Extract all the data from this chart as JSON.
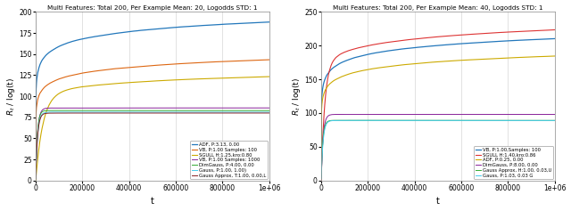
{
  "left_title": "Multi Features: Total 200, Per Example Mean: 20, Logodds STD: 1",
  "right_title": "Multi Features: Total 200, Per Example Mean: 40, Logodds STD: 1",
  "xlabel": "t",
  "ylabel": "$R_t$ / log(t)",
  "xlim": [
    0,
    1000000
  ],
  "left_ylim": [
    0,
    200
  ],
  "right_ylim": [
    0,
    250
  ],
  "left_legend": [
    {
      "label": "ADF, P:3.13, 0.00",
      "color": "#2277bb"
    },
    {
      "label": "VB, P:1.00 Samples: 100",
      "color": "#dd6611"
    },
    {
      "label": "SGULL H:1.25,kro:0.80",
      "color": "#ccaa00"
    },
    {
      "label": "VB, P:1.00 Samples: 1000",
      "color": "#882299"
    },
    {
      "label": "DimGauss, P:4.00, 0.00",
      "color": "#33aa33"
    },
    {
      "label": "Gauss, P:1.00, 1.00)",
      "color": "#44ccee"
    },
    {
      "label": "Gauss Approx, T:1.00, 0.00,L",
      "color": "#882222"
    }
  ],
  "right_legend": [
    {
      "label": "VB, P:1.00,Samples: 100",
      "color": "#2277bb"
    },
    {
      "label": "SGULL H:1.40,kro:0.86",
      "color": "#dd3333"
    },
    {
      "label": "ADF, P:0.25, 0.00",
      "color": "#ccaa00"
    },
    {
      "label": "DimGauss, P:8.00, 0.00",
      "color": "#882299"
    },
    {
      "label": "Gauss Approx, H:1.00, 0.03,U",
      "color": "#33aa33"
    },
    {
      "label": "Gauss, P:1.03, 0.03 G",
      "color": "#44ccee"
    }
  ]
}
